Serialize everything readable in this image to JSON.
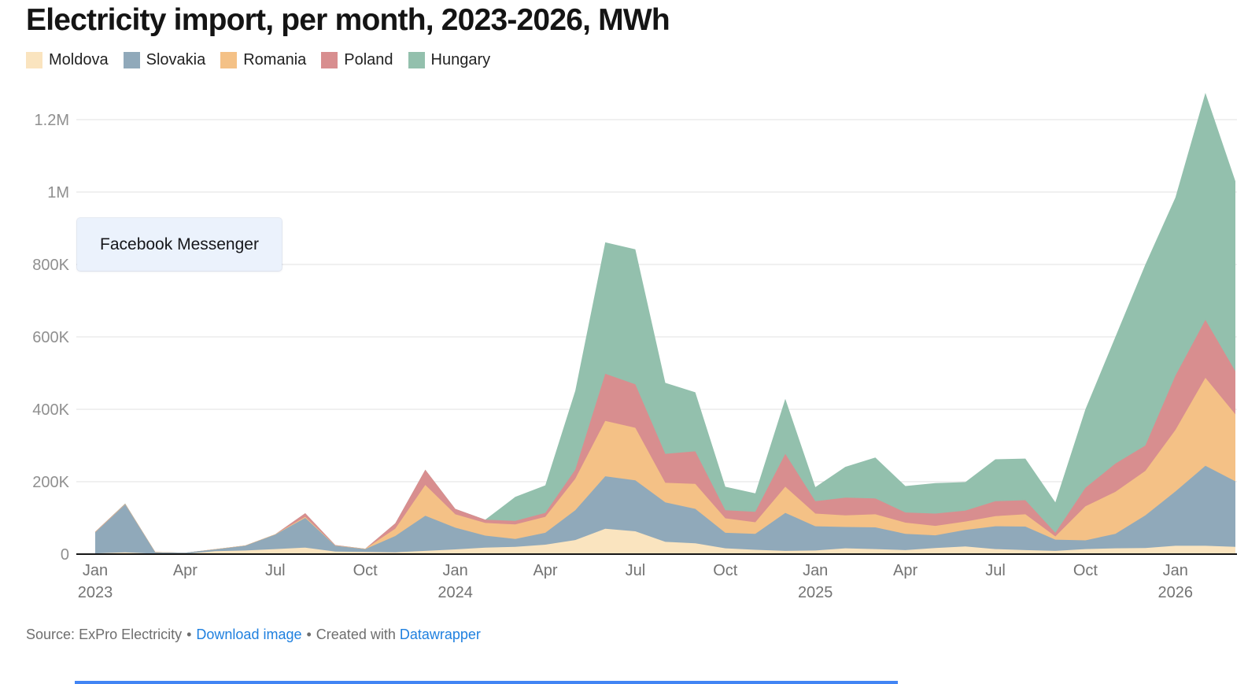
{
  "title": "Electricity import, per month, 2023-2026, MWh",
  "overlay": {
    "label": "Facebook Messenger"
  },
  "footer": {
    "source_prefix": "Source:",
    "source_name": "ExPro Electricity",
    "bullet": "•",
    "download_label": "Download image",
    "created_with": "Created with",
    "tool_name": "Datawrapper"
  },
  "colors": {
    "moldova": "#FAE4BF",
    "slovakia": "#90A9BA",
    "romania": "#F4C186",
    "poland": "#D88E8F",
    "hungary": "#93C0AD",
    "baseline": "#161616",
    "gridline": "#e0e0e0",
    "link_blue": "#1f80df",
    "bottom_bar_blue": "#4285f4"
  },
  "chart_data": {
    "type": "area",
    "stacked": true,
    "unit": "MWh",
    "title": "Electricity import, per month, 2023-2026, MWh",
    "xlabel": "",
    "ylabel": "MWh",
    "ylim": [
      0,
      1300000
    ],
    "grid": true,
    "legend_position": "top",
    "x": [
      "2023-01",
      "2023-02",
      "2023-03",
      "2023-04",
      "2023-05",
      "2023-06",
      "2023-07",
      "2023-08",
      "2023-09",
      "2023-10",
      "2023-11",
      "2023-12",
      "2024-01",
      "2024-02",
      "2024-03",
      "2024-04",
      "2024-05",
      "2024-06",
      "2024-07",
      "2024-08",
      "2024-09",
      "2024-10",
      "2024-11",
      "2024-12",
      "2025-01",
      "2025-02",
      "2025-03",
      "2025-04",
      "2025-05",
      "2025-06",
      "2025-07",
      "2025-08",
      "2025-09",
      "2025-10",
      "2025-11",
      "2025-12",
      "2026-01",
      "2026-02",
      "2026-03"
    ],
    "x_ticks": [
      {
        "index": 0,
        "month": "Jan",
        "year": "2023"
      },
      {
        "index": 3,
        "month": "Apr"
      },
      {
        "index": 6,
        "month": "Jul"
      },
      {
        "index": 9,
        "month": "Oct"
      },
      {
        "index": 12,
        "month": "Jan",
        "year": "2024"
      },
      {
        "index": 15,
        "month": "Apr"
      },
      {
        "index": 18,
        "month": "Jul"
      },
      {
        "index": 21,
        "month": "Oct"
      },
      {
        "index": 24,
        "month": "Jan",
        "year": "2025"
      },
      {
        "index": 27,
        "month": "Apr"
      },
      {
        "index": 30,
        "month": "Jul"
      },
      {
        "index": 33,
        "month": "Oct"
      },
      {
        "index": 36,
        "month": "Jan",
        "year": "2026"
      }
    ],
    "y_ticks": [
      {
        "label": "0",
        "value": 0
      },
      {
        "label": "200K",
        "value": 200000
      },
      {
        "label": "400K",
        "value": 400000
      },
      {
        "label": "600K",
        "value": 600000
      },
      {
        "label": "800K",
        "value": 800000
      },
      {
        "label": "1M",
        "value": 1000000
      },
      {
        "label": "1.2M",
        "value": 1200000
      }
    ],
    "series": [
      {
        "name": "Moldova",
        "color": "#FAE4BF",
        "values": [
          2000,
          5000,
          1000,
          1000,
          8000,
          10000,
          14000,
          18000,
          7000,
          6000,
          5000,
          9000,
          13000,
          18000,
          20000,
          26000,
          39000,
          70000,
          63000,
          34000,
          30000,
          16000,
          12000,
          9000,
          10000,
          16000,
          14000,
          11000,
          17000,
          21000,
          14000,
          11000,
          9000,
          14000,
          16000,
          17000,
          23000,
          23000,
          20000
        ]
      },
      {
        "name": "Slovakia",
        "color": "#90A9BA",
        "values": [
          58000,
          132000,
          4000,
          3000,
          5000,
          13000,
          40000,
          82000,
          16000,
          8000,
          45000,
          97000,
          60000,
          33000,
          22000,
          33000,
          82000,
          145000,
          141000,
          109000,
          95000,
          43000,
          44000,
          105000,
          67000,
          59000,
          60000,
          45000,
          35000,
          46000,
          63000,
          65000,
          31000,
          24000,
          40000,
          90000,
          150000,
          221000,
          181000
        ]
      },
      {
        "name": "Romania",
        "color": "#F4C186",
        "values": [
          1000,
          1000,
          1000,
          0,
          1000,
          1000,
          1000,
          3000,
          1000,
          1000,
          20000,
          85000,
          37000,
          35000,
          40000,
          44000,
          87000,
          153000,
          145000,
          54000,
          69000,
          40000,
          32000,
          72000,
          35000,
          32000,
          36000,
          31000,
          26000,
          23000,
          28000,
          34000,
          9000,
          94000,
          116000,
          123000,
          170000,
          243000,
          185000
        ]
      },
      {
        "name": "Poland",
        "color": "#D88E8F",
        "values": [
          1000,
          1000,
          0,
          0,
          0,
          0,
          0,
          10000,
          1000,
          0,
          15000,
          42000,
          15000,
          9000,
          10000,
          11000,
          25000,
          130000,
          120000,
          80000,
          90000,
          22000,
          29000,
          91000,
          34000,
          49000,
          44000,
          28000,
          34000,
          30000,
          41000,
          39000,
          10000,
          51000,
          78000,
          70000,
          150000,
          160000,
          119000
        ]
      },
      {
        "name": "Hungary",
        "color": "#93C0AD",
        "values": [
          0,
          1000,
          0,
          0,
          0,
          0,
          0,
          0,
          0,
          0,
          0,
          0,
          0,
          0,
          66000,
          76000,
          218000,
          363000,
          373000,
          196000,
          163000,
          65000,
          51000,
          152000,
          39000,
          85000,
          113000,
          73000,
          84000,
          79000,
          116000,
          115000,
          84000,
          217000,
          350000,
          500000,
          492000,
          627000,
          525000
        ]
      }
    ]
  }
}
